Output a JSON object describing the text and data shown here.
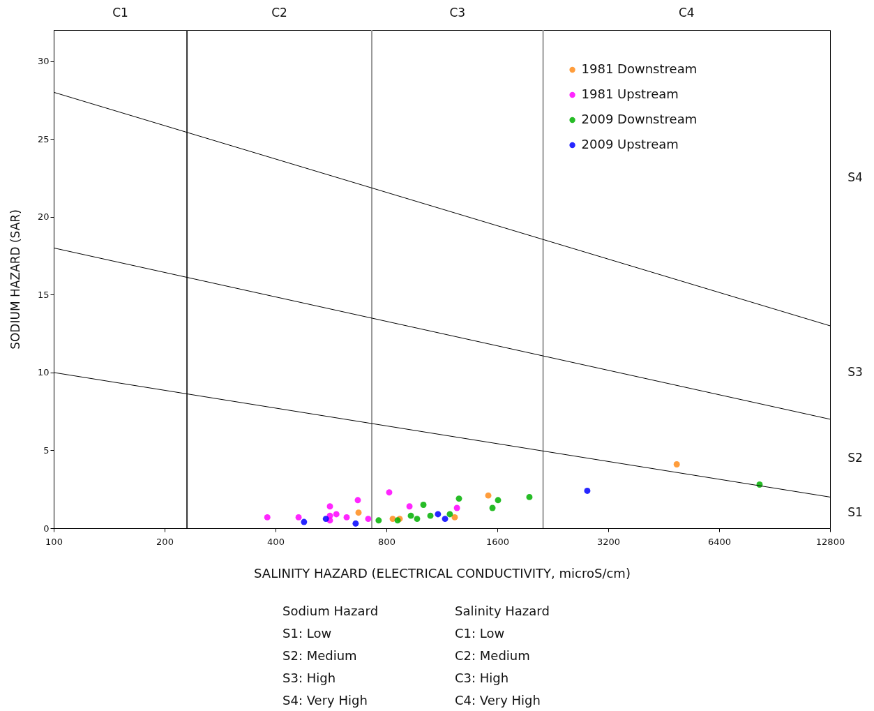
{
  "chart_data": {
    "type": "scatter",
    "xlabel": "SALINITY HAZARD (ELECTRICAL CONDUCTIVITY, microS/cm)",
    "ylabel": "SODIUM HAZARD (SAR)",
    "log": "x",
    "xlim": [
      100,
      12800
    ],
    "xticks": [
      100,
      200,
      400,
      800,
      1600,
      3200,
      6400,
      12800
    ],
    "ylim": [
      0,
      32
    ],
    "yticks": [
      0,
      5,
      10,
      15,
      20,
      25,
      30
    ],
    "grid": false,
    "legend": "top right",
    "marker": "circle",
    "series": [
      {
        "name": "1981 Downstream",
        "color": "#ff8c1a",
        "x": [
          672,
          832,
          869,
          1226,
          1512,
          4910
        ],
        "values": [
          1.0,
          0.6,
          0.6,
          0.7,
          2.1,
          4.1
        ]
      },
      {
        "name": "1981 Upstream",
        "color": "#ff00ff",
        "x": [
          380,
          462,
          562,
          562,
          562,
          585,
          624,
          669,
          714,
          814,
          924,
          1243
        ],
        "values": [
          0.7,
          0.7,
          1.4,
          0.8,
          0.5,
          0.9,
          0.7,
          1.8,
          0.6,
          2.3,
          1.4,
          1.3
        ]
      },
      {
        "name": "2009 Downstream",
        "color": "#00b000",
        "x": [
          762,
          858,
          932,
          969,
          1008,
          1053,
          1189,
          1259,
          1607,
          1552,
          1955,
          8240
        ],
        "values": [
          0.5,
          0.5,
          0.8,
          0.6,
          1.5,
          0.8,
          0.9,
          1.9,
          1.8,
          1.3,
          2.0,
          2.8
        ]
      },
      {
        "name": "2009 Upstream",
        "color": "#0000ff",
        "x": [
          478,
          548,
          660,
          1104,
          1154,
          2807
        ],
        "values": [
          0.4,
          0.6,
          0.3,
          0.9,
          0.6,
          2.4
        ]
      },
      {
        "type": "line",
        "color": "#000000",
        "marker": "none",
        "x": [
          100,
          12800
        ],
        "values": [
          28,
          13
        ]
      },
      {
        "type": "line",
        "color": "#000000",
        "marker": "none",
        "x": [
          100,
          12800
        ],
        "values": [
          18,
          7
        ]
      },
      {
        "type": "line",
        "color": "#000000",
        "marker": "none",
        "x": [
          100,
          12800
        ],
        "values": [
          10,
          2
        ]
      }
    ],
    "ref_lines": [
      {
        "axis": "x",
        "value": 230,
        "color": "#333333"
      },
      {
        "axis": "x",
        "value": 730,
        "color": "#999999"
      },
      {
        "axis": "x",
        "value": 2130,
        "color": "#999999"
      }
    ],
    "annotations": [
      "C1",
      "C2",
      "C3",
      "C4",
      "S1",
      "S2",
      "S3",
      "S4",
      "Sodium Hazard",
      "S1: Low",
      "S2: Medium",
      "S3: High",
      "S4: Very High",
      "Salinity Hazard",
      "C1: Low",
      "C2: Medium",
      "C3: High",
      "C4: Very High"
    ]
  }
}
